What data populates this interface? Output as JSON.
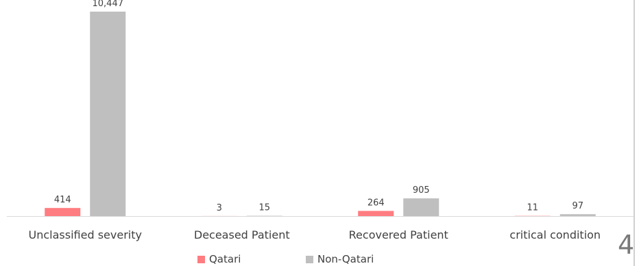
{
  "chart_data": {
    "type": "bar",
    "categories": [
      "Unclassified severity",
      "Deceased Patient",
      "Recovered Patient",
      "critical condition"
    ],
    "series": [
      {
        "name": "Qatari",
        "values": [
          414,
          3,
          264,
          11
        ],
        "labels": [
          "414",
          "3",
          "264",
          "11"
        ],
        "color": "#ff7c80"
      },
      {
        "name": "Non-Qatari",
        "values": [
          10447,
          15,
          905,
          97
        ],
        "labels": [
          "10,447",
          "15",
          "905",
          "97"
        ],
        "color": "#bfbfbf"
      }
    ],
    "ylim": [
      0,
      10447
    ],
    "grid": false,
    "legend": "bottom"
  },
  "page_number": "4"
}
